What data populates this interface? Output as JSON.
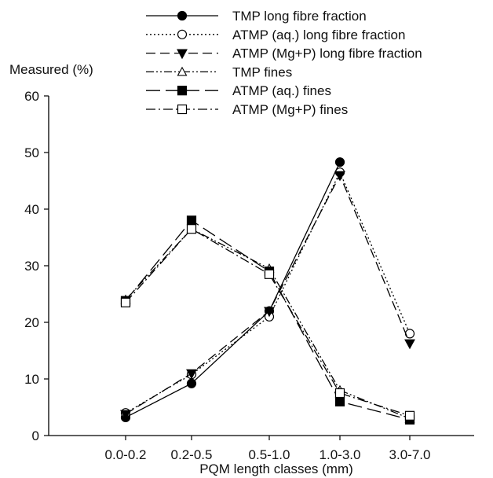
{
  "chart_data": {
    "type": "line",
    "ylabel": "Measured (%)",
    "xlabel": "PQM length classes (mm)",
    "categories": [
      "0.0-0.2",
      "0.2-0.5",
      "0.5-1.0",
      "1.0-3.0",
      "3.0-7.0"
    ],
    "ylim": [
      0,
      60
    ],
    "yticks": [
      "0",
      "10",
      "20",
      "30",
      "40",
      "50",
      "60"
    ],
    "grid": false,
    "legend_position": "top",
    "series": [
      {
        "name": "TMP long fibre fraction",
        "values": [
          3.2,
          9.2,
          22.0,
          48.3,
          null
        ],
        "dash": "solid",
        "marker": "circle-filled"
      },
      {
        "name": "ATMP (aq.) long fibre fraction",
        "values": [
          4.0,
          10.8,
          21.0,
          46.5,
          18.0
        ],
        "dash": "dotted",
        "marker": "circle-open"
      },
      {
        "name": "ATMP (Mg+P) long fibre fraction",
        "values": [
          3.8,
          11.0,
          22.0,
          46.0,
          16.3
        ],
        "dash": "dashed",
        "marker": "triangle-down-filled"
      },
      {
        "name": "TMP fines",
        "values": [
          24.0,
          36.5,
          29.5,
          8.0,
          3.0
        ],
        "dash": "dash-dot-dot",
        "marker": "triangle-up-open"
      },
      {
        "name": "ATMP (aq.) fines",
        "values": [
          23.8,
          38.0,
          29.0,
          6.0,
          2.8
        ],
        "dash": "long-dash",
        "marker": "square-filled"
      },
      {
        "name": "ATMP (Mg+P) fines",
        "values": [
          23.5,
          36.5,
          28.5,
          7.5,
          3.5
        ],
        "dash": "dash-dot",
        "marker": "square-open"
      }
    ]
  }
}
